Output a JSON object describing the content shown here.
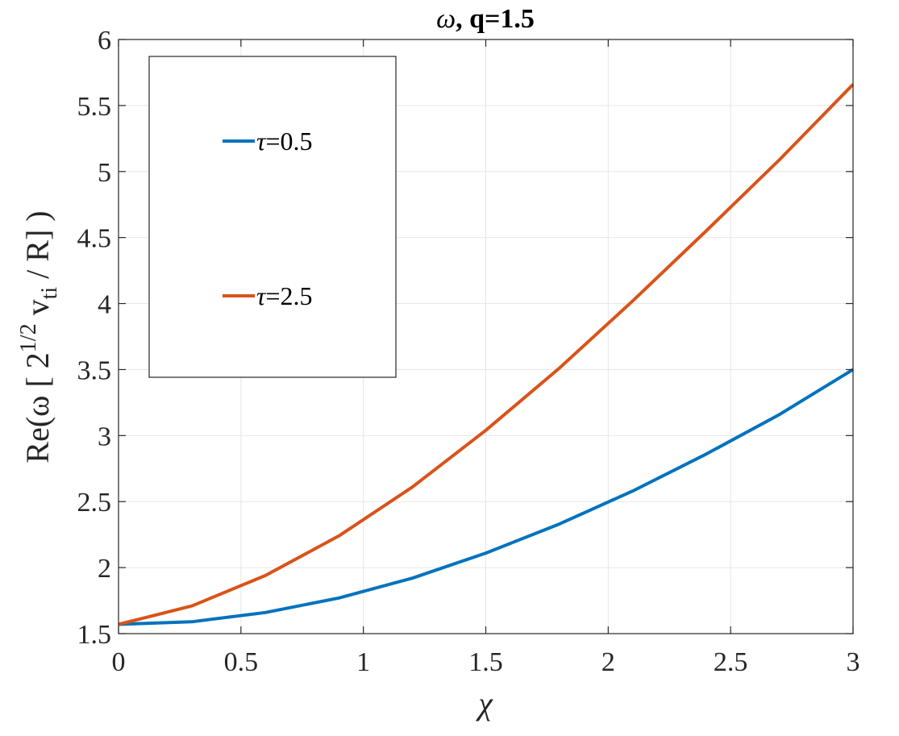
{
  "chart_data": {
    "type": "line",
    "title_symbol": "ω",
    "title_rest": ", q=1.5",
    "xlabel": "χ",
    "ylabel_main": "Re(ω [ 2",
    "ylabel_sup": "1/2",
    "ylabel_mid": " v",
    "ylabel_sub": "ti",
    "ylabel_end": " / R] )",
    "xlim": [
      0,
      3
    ],
    "ylim": [
      1.5,
      6
    ],
    "xticks": [
      0,
      0.5,
      1,
      1.5,
      2,
      2.5,
      3
    ],
    "xtick_labels": [
      "0",
      "0.5",
      "1",
      "1.5",
      "2",
      "2.5",
      "3"
    ],
    "yticks": [
      1.5,
      2,
      2.5,
      3,
      3.5,
      4,
      4.5,
      5,
      5.5,
      6
    ],
    "ytick_labels": [
      "1.5",
      "2",
      "2.5",
      "3",
      "3.5",
      "4",
      "4.5",
      "5",
      "5.5",
      "6"
    ],
    "grid": true,
    "legend_position": "top-left",
    "series": [
      {
        "name_symbol": "τ",
        "name_rest": "=0.5",
        "color": "#0072BD",
        "x": [
          0,
          0.3,
          0.6,
          0.9,
          1.2,
          1.5,
          1.8,
          2.1,
          2.4,
          2.7,
          3.0
        ],
        "y": [
          1.57,
          1.59,
          1.66,
          1.77,
          1.92,
          2.11,
          2.33,
          2.58,
          2.86,
          3.16,
          3.5
        ]
      },
      {
        "name_symbol": "τ",
        "name_rest": "=2.5",
        "color": "#D95319",
        "x": [
          0,
          0.3,
          0.6,
          0.9,
          1.2,
          1.5,
          1.8,
          2.1,
          2.4,
          2.7,
          3.0
        ],
        "y": [
          1.57,
          1.71,
          1.94,
          2.24,
          2.61,
          3.04,
          3.51,
          4.02,
          4.55,
          5.09,
          5.66
        ]
      }
    ]
  }
}
